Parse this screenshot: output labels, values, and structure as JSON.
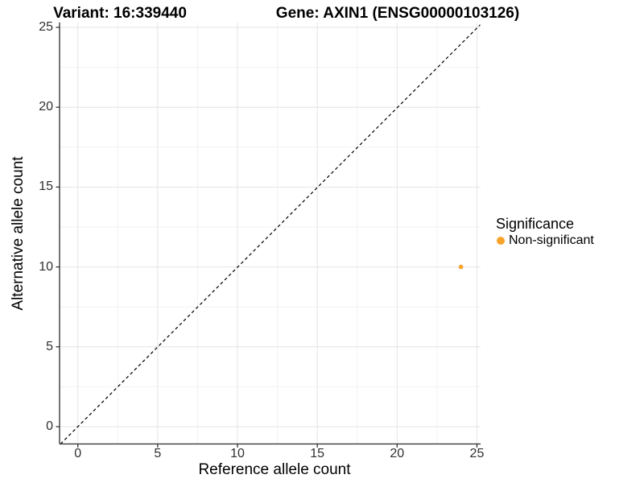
{
  "titles": {
    "left": "Variant: 16:339440",
    "right": "Gene: AXIN1 (ENSG00000103126)"
  },
  "axes": {
    "x": {
      "label": "Reference allele count",
      "ticks": [
        "0",
        "5",
        "10",
        "15",
        "20",
        "25"
      ]
    },
    "y": {
      "label": "Alternative allele count",
      "ticks": [
        "0",
        "5",
        "10",
        "15",
        "20",
        "25"
      ]
    }
  },
  "legend": {
    "title": "Significance",
    "items": [
      {
        "label": "Non-significant",
        "color": "#F9A32B"
      }
    ]
  },
  "colors": {
    "point": "#F9A32B",
    "grid_major": "#e4e4e4",
    "grid_minor": "#f2f2f2",
    "axis_line": "#2a2a2a",
    "tick_mark": "#333333"
  },
  "chart_data": {
    "type": "scatter",
    "title": "Variant: 16:339440 | Gene: AXIN1 (ENSG00000103126)",
    "xlabel": "Reference allele count",
    "ylabel": "Alternative allele count",
    "xlim": [
      0,
      25
    ],
    "ylim": [
      0,
      25
    ],
    "xticks": [
      0,
      5,
      10,
      15,
      20,
      25
    ],
    "yticks": [
      0,
      5,
      10,
      15,
      20,
      25
    ],
    "xticks_minor": [
      2.5,
      7.5,
      12.5,
      17.5,
      22.5
    ],
    "yticks_minor": [
      2.5,
      7.5,
      12.5,
      17.5,
      22.5
    ],
    "grid": true,
    "legend_position": "right",
    "series": [
      {
        "name": "Non-significant",
        "color": "#F9A32B",
        "points": [
          {
            "x": 24,
            "y": 10
          }
        ]
      }
    ],
    "reference_line": {
      "type": "diagonal",
      "slope": 1,
      "intercept": 0,
      "style": "dashed",
      "color": "#000000"
    }
  }
}
